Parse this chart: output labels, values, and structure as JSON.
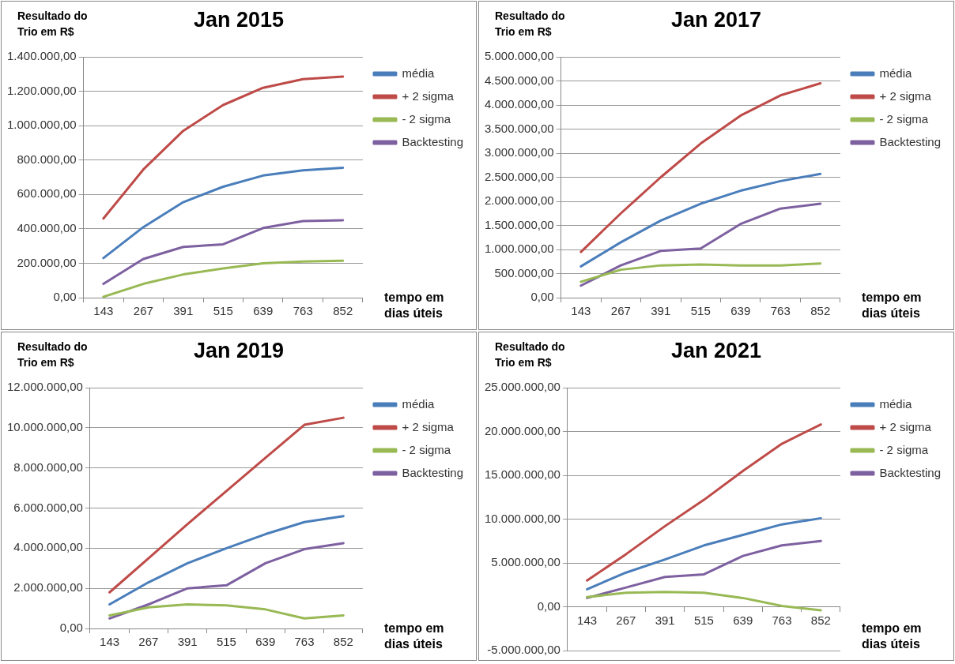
{
  "chart_data": [
    {
      "type": "line",
      "title": "Jan 2015",
      "ylabel": "Resultado do Trio em R$",
      "xlabel": "tempo  em dias úteis",
      "categories": [
        "143",
        "267",
        "391",
        "515",
        "639",
        "763",
        "852"
      ],
      "series": [
        {
          "name": "média",
          "color": "#4a7ebb",
          "values": [
            230000,
            410000,
            555000,
            645000,
            710000,
            740000,
            755000
          ]
        },
        {
          "name": "+ 2 sigma",
          "color": "#be4b48",
          "values": [
            460000,
            745000,
            970000,
            1120000,
            1220000,
            1270000,
            1285000
          ]
        },
        {
          "name": "- 2 sigma",
          "color": "#98b954",
          "values": [
            5000,
            80000,
            135000,
            170000,
            200000,
            210000,
            215000
          ]
        },
        {
          "name": "Backtesting",
          "color": "#7d60a0",
          "values": [
            80000,
            225000,
            295000,
            310000,
            405000,
            445000,
            450000
          ]
        }
      ],
      "ylim": [
        0,
        1400000
      ],
      "yticks": [
        {
          "value": 0,
          "label": "0,00"
        },
        {
          "value": 200000,
          "label": "200.000,00"
        },
        {
          "value": 400000,
          "label": "400.000,00"
        },
        {
          "value": 600000,
          "label": "600.000,00"
        },
        {
          "value": 800000,
          "label": "800.000,00"
        },
        {
          "value": 1000000,
          "label": "1.000.000,00"
        },
        {
          "value": 1200000,
          "label": "1.200.000,00"
        },
        {
          "value": 1400000,
          "label": "1.400.000,00"
        }
      ],
      "grid": "y",
      "legend": "right",
      "marker": "none",
      "line_style": "solid"
    },
    {
      "type": "line",
      "title": "Jan 2017",
      "ylabel": "Resultado do Trio em R$",
      "xlabel": "tempo  em dias úteis",
      "categories": [
        "143",
        "267",
        "391",
        "515",
        "639",
        "763",
        "852"
      ],
      "series": [
        {
          "name": "média",
          "color": "#4a7ebb",
          "values": [
            650000,
            1150000,
            1600000,
            1950000,
            2220000,
            2420000,
            2570000
          ]
        },
        {
          "name": "+ 2 sigma",
          "color": "#be4b48",
          "values": [
            950000,
            1750000,
            2500000,
            3200000,
            3780000,
            4200000,
            4450000
          ]
        },
        {
          "name": "- 2 sigma",
          "color": "#98b954",
          "values": [
            330000,
            580000,
            670000,
            690000,
            670000,
            670000,
            710000
          ]
        },
        {
          "name": "Backtesting",
          "color": "#7d60a0",
          "values": [
            250000,
            670000,
            970000,
            1020000,
            1530000,
            1850000,
            1950000
          ]
        }
      ],
      "ylim": [
        0,
        5000000
      ],
      "yticks": [
        {
          "value": 0,
          "label": "0,00"
        },
        {
          "value": 500000,
          "label": "500.000,00"
        },
        {
          "value": 1000000,
          "label": "1.000.000,00"
        },
        {
          "value": 1500000,
          "label": "1.500.000,00"
        },
        {
          "value": 2000000,
          "label": "2.000.000,00"
        },
        {
          "value": 2500000,
          "label": "2.500.000,00"
        },
        {
          "value": 3000000,
          "label": "3.000.000,00"
        },
        {
          "value": 3500000,
          "label": "3.500.000,00"
        },
        {
          "value": 4000000,
          "label": "4.000.000,00"
        },
        {
          "value": 4500000,
          "label": "4.500.000,00"
        },
        {
          "value": 5000000,
          "label": "5.000.000,00"
        }
      ],
      "grid": "y",
      "legend": "right",
      "marker": "none",
      "line_style": "solid"
    },
    {
      "type": "line",
      "title": "Jan 2019",
      "ylabel": "Resultado do Trio em R$",
      "xlabel": "tempo  em dias úteis",
      "categories": [
        "143",
        "267",
        "391",
        "515",
        "639",
        "763",
        "852"
      ],
      "series": [
        {
          "name": "média",
          "color": "#4a7ebb",
          "values": [
            1200000,
            2300000,
            3250000,
            4000000,
            4700000,
            5300000,
            5600000
          ]
        },
        {
          "name": "+ 2 sigma",
          "color": "#be4b48",
          "values": [
            1800000,
            3500000,
            5200000,
            6850000,
            8500000,
            10150000,
            10500000
          ]
        },
        {
          "name": "- 2 sigma",
          "color": "#98b954",
          "values": [
            650000,
            1050000,
            1200000,
            1150000,
            950000,
            500000,
            650000
          ]
        },
        {
          "name": "Backtesting",
          "color": "#7d60a0",
          "values": [
            500000,
            1200000,
            2000000,
            2150000,
            3250000,
            3950000,
            4250000
          ]
        }
      ],
      "ylim": [
        0,
        12000000
      ],
      "yticks": [
        {
          "value": 0,
          "label": "0,00"
        },
        {
          "value": 2000000,
          "label": "2.000.000,00"
        },
        {
          "value": 4000000,
          "label": "4.000.000,00"
        },
        {
          "value": 6000000,
          "label": "6.000.000,00"
        },
        {
          "value": 8000000,
          "label": "8.000.000,00"
        },
        {
          "value": 10000000,
          "label": "10.000.000,00"
        },
        {
          "value": 12000000,
          "label": "12.000.000,00"
        }
      ],
      "grid": "y",
      "legend": "right",
      "marker": "none",
      "line_style": "solid"
    },
    {
      "type": "line",
      "title": "Jan 2021",
      "ylabel": "Resultado do Trio em R$",
      "xlabel": "tempo  em dias úteis",
      "categories": [
        "143",
        "267",
        "391",
        "515",
        "639",
        "763",
        "852"
      ],
      "series": [
        {
          "name": "média",
          "color": "#4a7ebb",
          "values": [
            2000000,
            3900000,
            5400000,
            7000000,
            8200000,
            9400000,
            10100000
          ]
        },
        {
          "name": "+ 2 sigma",
          "color": "#be4b48",
          "values": [
            3000000,
            6000000,
            9200000,
            12200000,
            15500000,
            18600000,
            20800000
          ]
        },
        {
          "name": "- 2 sigma",
          "color": "#98b954",
          "values": [
            1100000,
            1600000,
            1700000,
            1600000,
            1000000,
            100000,
            -400000
          ]
        },
        {
          "name": "Backtesting",
          "color": "#7d60a0",
          "values": [
            1000000,
            2200000,
            3400000,
            3700000,
            5800000,
            7000000,
            7500000
          ]
        }
      ],
      "ylim": [
        -5000000,
        25000000
      ],
      "yticks": [
        {
          "value": -5000000,
          "label": "-5.000.000,00"
        },
        {
          "value": 0,
          "label": "0,00"
        },
        {
          "value": 5000000,
          "label": "5.000.000,00"
        },
        {
          "value": 10000000,
          "label": "10.000.000,00"
        },
        {
          "value": 15000000,
          "label": "15.000.000,00"
        },
        {
          "value": 20000000,
          "label": "20.000.000,00"
        },
        {
          "value": 25000000,
          "label": "25.000.000,00"
        }
      ],
      "grid": "y",
      "legend": "right",
      "marker": "none",
      "line_style": "solid"
    }
  ]
}
